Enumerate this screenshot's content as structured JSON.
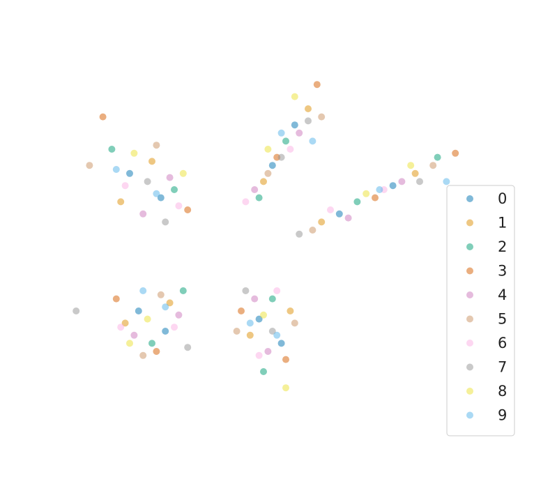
{
  "chart_data": {
    "type": "scatter",
    "xlim": [
      0,
      100
    ],
    "ylim": [
      0,
      100
    ],
    "legend": "lower right",
    "series": [
      {
        "name": "0",
        "color": "#0173b2",
        "x": [
          15,
          22,
          47,
          52,
          62,
          74,
          17,
          23,
          44,
          49
        ],
        "y": [
          64,
          58,
          66,
          76,
          54,
          61,
          30,
          25,
          28,
          22
        ]
      },
      {
        "name": "1",
        "color": "#de8f05",
        "x": [
          20,
          13,
          45,
          55,
          58,
          79,
          14,
          24,
          42,
          51
        ],
        "y": [
          67,
          57,
          62,
          80,
          52,
          64,
          27,
          32,
          24,
          30
        ]
      },
      {
        "name": "2",
        "color": "#029e73",
        "x": [
          11,
          25,
          50,
          44,
          66,
          84,
          20,
          27,
          47,
          45
        ],
        "y": [
          70,
          60,
          72,
          58,
          57,
          68,
          22,
          35,
          33,
          15
        ]
      },
      {
        "name": "3",
        "color": "#d55e00",
        "x": [
          9,
          28,
          57,
          48,
          70,
          88,
          12,
          21,
          40,
          50
        ],
        "y": [
          78,
          55,
          86,
          68,
          58,
          69,
          33,
          20,
          30,
          18
        ]
      },
      {
        "name": "4",
        "color": "#cc78bc",
        "x": [
          18,
          24,
          43,
          53,
          64,
          76,
          16,
          26,
          46,
          43
        ],
        "y": [
          54,
          63,
          60,
          74,
          53,
          62,
          24,
          29,
          20,
          33
        ]
      },
      {
        "name": "5",
        "color": "#ca9161",
        "x": [
          6,
          21,
          58,
          46,
          56,
          83,
          22,
          18,
          52,
          39
        ],
        "y": [
          66,
          71,
          78,
          64,
          50,
          66,
          34,
          19,
          27,
          25
        ]
      },
      {
        "name": "6",
        "color": "#fbafe4",
        "x": [
          26,
          14,
          41,
          51,
          60,
          72,
          13,
          25,
          48,
          44
        ],
        "y": [
          56,
          61,
          57,
          70,
          55,
          60,
          26,
          26,
          35,
          19
        ]
      },
      {
        "name": "7",
        "color": "#949494",
        "x": [
          19,
          23,
          49,
          55,
          53,
          80,
          3,
          28,
          41,
          47
        ],
        "y": [
          62,
          52,
          68,
          77,
          49,
          62,
          30,
          21,
          35,
          25
        ]
      },
      {
        "name": "8",
        "color": "#ece133",
        "x": [
          16,
          27,
          46,
          52,
          68,
          78,
          19,
          15,
          45,
          50
        ],
        "y": [
          69,
          64,
          70,
          83,
          59,
          66,
          28,
          22,
          29,
          11
        ]
      },
      {
        "name": "9",
        "color": "#56b4e9",
        "x": [
          21,
          12,
          49,
          56,
          71,
          86,
          23,
          18,
          48,
          42
        ],
        "y": [
          59,
          65,
          74,
          72,
          60,
          62,
          31,
          35,
          24,
          27
        ]
      }
    ]
  }
}
